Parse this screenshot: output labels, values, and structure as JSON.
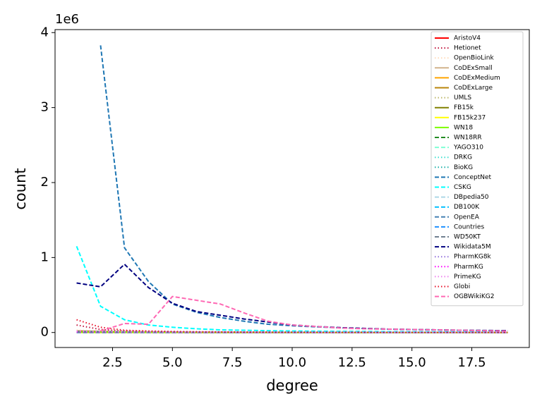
{
  "chart_data": {
    "type": "line",
    "x_label": "degree",
    "y_label": "count",
    "offset_text": "1e6",
    "x": [
      1,
      2,
      3,
      4,
      5,
      6,
      7,
      8,
      9,
      10,
      11,
      12,
      13,
      14,
      15,
      16,
      17,
      18,
      19
    ],
    "xlim": [
      0.1,
      19.9
    ],
    "ylim": [
      -0.2,
      4.04
    ],
    "xticks": [
      2.5,
      {
        "value": 5,
        "label": "5.0"
      },
      7.5,
      {
        "value": 10,
        "label": "10.0"
      },
      12.5,
      {
        "value": 15,
        "label": "15.0"
      },
      17.5
    ],
    "yticks": [
      0,
      1,
      2,
      3,
      4
    ],
    "legend": "upper right",
    "series": [
      {
        "name": "AristoV4",
        "color": "#ff0000",
        "dash": "solid",
        "values": [
          0.02,
          0.01,
          0.005,
          0.003,
          0.002,
          0.002,
          0.001,
          0.001,
          0.001,
          0.001,
          0.001,
          0.001,
          0.001,
          0.001,
          0,
          0,
          0,
          0,
          0
        ]
      },
      {
        "name": "Hetionet",
        "color": "#c0143c",
        "dash": "dotted",
        "values": [
          0.1,
          0.04,
          0.02,
          0.012,
          0.008,
          0.006,
          0.005,
          0.004,
          0.003,
          0.003,
          0.002,
          0.002,
          0.002,
          0.002,
          0.001,
          0.001,
          0.001,
          0.001,
          0.001
        ]
      },
      {
        "name": "OpenBioLink",
        "color": "#ffdab9",
        "dash": "dotted",
        "values": [
          0.03,
          0.02,
          0.01,
          0.008,
          0.006,
          0.005,
          0.004,
          0.003,
          0.003,
          0.002,
          0.002,
          0.002,
          0.002,
          0.001,
          0.001,
          0.001,
          0.001,
          0.001,
          0.001
        ]
      },
      {
        "name": "CoDExSmall",
        "color": "#d2b48c",
        "dash": "solid",
        "values": [
          0.002,
          0.001,
          0.001,
          0.001,
          0.001,
          0,
          0,
          0,
          0,
          0,
          0,
          0,
          0,
          0,
          0,
          0,
          0,
          0,
          0
        ]
      },
      {
        "name": "CoDExMedium",
        "color": "#ffa500",
        "dash": "solid",
        "values": [
          0.005,
          0.004,
          0.003,
          0.002,
          0.002,
          0.001,
          0.001,
          0.001,
          0.001,
          0.001,
          0,
          0,
          0,
          0,
          0,
          0,
          0,
          0,
          0
        ]
      },
      {
        "name": "CoDExLarge",
        "color": "#b8860b",
        "dash": "solid",
        "values": [
          0.02,
          0.015,
          0.01,
          0.008,
          0.006,
          0.005,
          0.004,
          0.003,
          0.003,
          0.002,
          0.002,
          0.002,
          0.001,
          0.001,
          0.001,
          0.001,
          0.001,
          0.001,
          0.001
        ]
      },
      {
        "name": "UMLS",
        "color": "#bdb76b",
        "dash": "dotted",
        "values": [
          0,
          0,
          0,
          0,
          0,
          0,
          0,
          0,
          0,
          0,
          0,
          0,
          0,
          0,
          0,
          0,
          0,
          0,
          0
        ]
      },
      {
        "name": "FB15k",
        "color": "#808000",
        "dash": "solid",
        "values": [
          0.001,
          0.001,
          0.001,
          0.001,
          0.001,
          0.001,
          0.001,
          0,
          0,
          0,
          0,
          0,
          0,
          0,
          0,
          0,
          0,
          0,
          0
        ]
      },
      {
        "name": "FB15k237",
        "color": "#ffff00",
        "dash": "solid",
        "values": [
          0.001,
          0.001,
          0.001,
          0.001,
          0.001,
          0.001,
          0,
          0,
          0,
          0,
          0,
          0,
          0,
          0,
          0,
          0,
          0,
          0,
          0
        ]
      },
      {
        "name": "WN18",
        "color": "#7cfc00",
        "dash": "solid",
        "values": [
          0.006,
          0.006,
          0.004,
          0.003,
          0.002,
          0.001,
          0.001,
          0.001,
          0,
          0,
          0,
          0,
          0,
          0,
          0,
          0,
          0,
          0,
          0
        ]
      },
      {
        "name": "WN18RR",
        "color": "#228b22",
        "dash": "dashed",
        "values": [
          0.006,
          0.006,
          0.004,
          0.003,
          0.002,
          0.001,
          0.001,
          0.001,
          0,
          0,
          0,
          0,
          0,
          0,
          0,
          0,
          0,
          0,
          0
        ]
      },
      {
        "name": "YAGO310",
        "color": "#7fffd4",
        "dash": "dashed",
        "values": [
          0.01,
          0.008,
          0.008,
          0.007,
          0.006,
          0.005,
          0.004,
          0.004,
          0.003,
          0.003,
          0.003,
          0.002,
          0.002,
          0.002,
          0.002,
          0.002,
          0.001,
          0.001,
          0.001
        ]
      },
      {
        "name": "DRKG",
        "color": "#40e0d0",
        "dash": "dotted",
        "values": [
          0.005,
          0.004,
          0.004,
          0.003,
          0.003,
          0.002,
          0.002,
          0.002,
          0.002,
          0.001,
          0.001,
          0.001,
          0.001,
          0.001,
          0.001,
          0.001,
          0.001,
          0.001,
          0.001
        ]
      },
      {
        "name": "BioKG",
        "color": "#20b2aa",
        "dash": "dotted",
        "values": [
          0.01,
          0.008,
          0.006,
          0.005,
          0.004,
          0.003,
          0.003,
          0.002,
          0.002,
          0.002,
          0.002,
          0.001,
          0.001,
          0.001,
          0.001,
          0.001,
          0.001,
          0.001,
          0.001
        ]
      },
      {
        "name": "ConceptNet",
        "color": "#1f77b4",
        "dash": "dashed",
        "values": [
          null,
          3.83,
          1.13,
          0.68,
          0.38,
          0.27,
          0.2,
          0.15,
          0.11,
          0.09,
          0.075,
          0.062,
          0.053,
          0.045,
          0.04,
          0.035,
          0.03,
          0.027,
          0.024
        ]
      },
      {
        "name": "CSKG",
        "color": "#00ffff",
        "dash": "dashed",
        "values": [
          1.15,
          0.35,
          0.17,
          0.1,
          0.07,
          0.05,
          0.035,
          0.03,
          0.024,
          0.02,
          0.017,
          0.015,
          0.013,
          0.011,
          0.01,
          0.009,
          0.008,
          0.007,
          0.006
        ]
      },
      {
        "name": "DBpedia50",
        "color": "#add8e6",
        "dash": "dashed",
        "values": [
          0.005,
          0.003,
          0.002,
          0.001,
          0.001,
          0.001,
          0,
          0,
          0,
          0,
          0,
          0,
          0,
          0,
          0,
          0,
          0,
          0,
          0
        ]
      },
      {
        "name": "DB100K",
        "color": "#00bfff",
        "dash": "dashed",
        "values": [
          0.01,
          0.01,
          0.008,
          0.006,
          0.005,
          0.004,
          0.003,
          0.003,
          0.002,
          0.002,
          0.002,
          0.001,
          0.001,
          0.001,
          0.001,
          0.001,
          0.001,
          0.001,
          0.001
        ]
      },
      {
        "name": "OpenEA",
        "color": "#4682b4",
        "dash": "dashed",
        "values": [
          0.01,
          0.008,
          0.006,
          0.005,
          0.004,
          0.003,
          0.003,
          0.002,
          0.002,
          0.002,
          0.001,
          0.001,
          0.001,
          0.001,
          0.001,
          0.001,
          0.001,
          0.001,
          0.001
        ]
      },
      {
        "name": "Countries",
        "color": "#1e90ff",
        "dash": "dashed",
        "values": [
          0,
          0,
          0,
          0,
          0,
          0,
          0,
          0,
          0,
          0,
          0,
          0,
          0,
          0,
          0,
          0,
          0,
          0,
          0
        ]
      },
      {
        "name": "WD50KT",
        "color": "#708090",
        "dash": "dashed",
        "values": [
          0.004,
          0.003,
          0.002,
          0.002,
          0.001,
          0.001,
          0.001,
          0,
          0,
          0,
          0,
          0,
          0,
          0,
          0,
          0,
          0,
          0,
          0
        ]
      },
      {
        "name": "Wikidata5M",
        "color": "#000080",
        "dash": "dashed",
        "values": [
          0.66,
          0.61,
          0.91,
          0.6,
          0.39,
          0.28,
          0.23,
          0.18,
          0.14,
          0.1,
          0.08,
          0.065,
          0.055,
          0.045,
          0.04,
          0.035,
          0.03,
          0.027,
          0.025
        ]
      },
      {
        "name": "PharmKG8k",
        "color": "#9370db",
        "dash": "dotted",
        "values": [
          0.003,
          0.002,
          0.002,
          0.001,
          0.001,
          0.001,
          0.001,
          0,
          0,
          0,
          0,
          0,
          0,
          0,
          0,
          0,
          0,
          0,
          0
        ]
      },
      {
        "name": "PharmKG",
        "color": "#ff00ff",
        "dash": "dotted",
        "values": [
          0.01,
          0.008,
          0.006,
          0.005,
          0.004,
          0.003,
          0.003,
          0.002,
          0.002,
          0.002,
          0.001,
          0.001,
          0.001,
          0.001,
          0.001,
          0.001,
          0.001,
          0.001,
          0.001
        ]
      },
      {
        "name": "PrimeKG",
        "color": "#ee82ee",
        "dash": "dotted",
        "values": [
          0.02,
          0.015,
          0.012,
          0.01,
          0.008,
          0.006,
          0.005,
          0.004,
          0.004,
          0.003,
          0.003,
          0.002,
          0.002,
          0.002,
          0.002,
          0.001,
          0.001,
          0.001,
          0.001
        ]
      },
      {
        "name": "Globi",
        "color": "#e8102a",
        "dash": "dotted",
        "values": [
          0.17,
          0.07,
          0.03,
          0.02,
          0.014,
          0.01,
          0.008,
          0.006,
          0.005,
          0.004,
          0.004,
          0.003,
          0.003,
          0.002,
          0.002,
          0.002,
          0.002,
          0.002,
          0.001
        ]
      },
      {
        "name": "OGBWikiKG2",
        "color": "#ff69b4",
        "dash": "dashed",
        "values": [
          null,
          0.02,
          0.12,
          0.11,
          0.48,
          0.43,
          0.38,
          0.26,
          0.15,
          0.1,
          0.08,
          0.06,
          0.05,
          0.045,
          0.04,
          0.035,
          0.03,
          0.025,
          0.02
        ]
      }
    ]
  }
}
